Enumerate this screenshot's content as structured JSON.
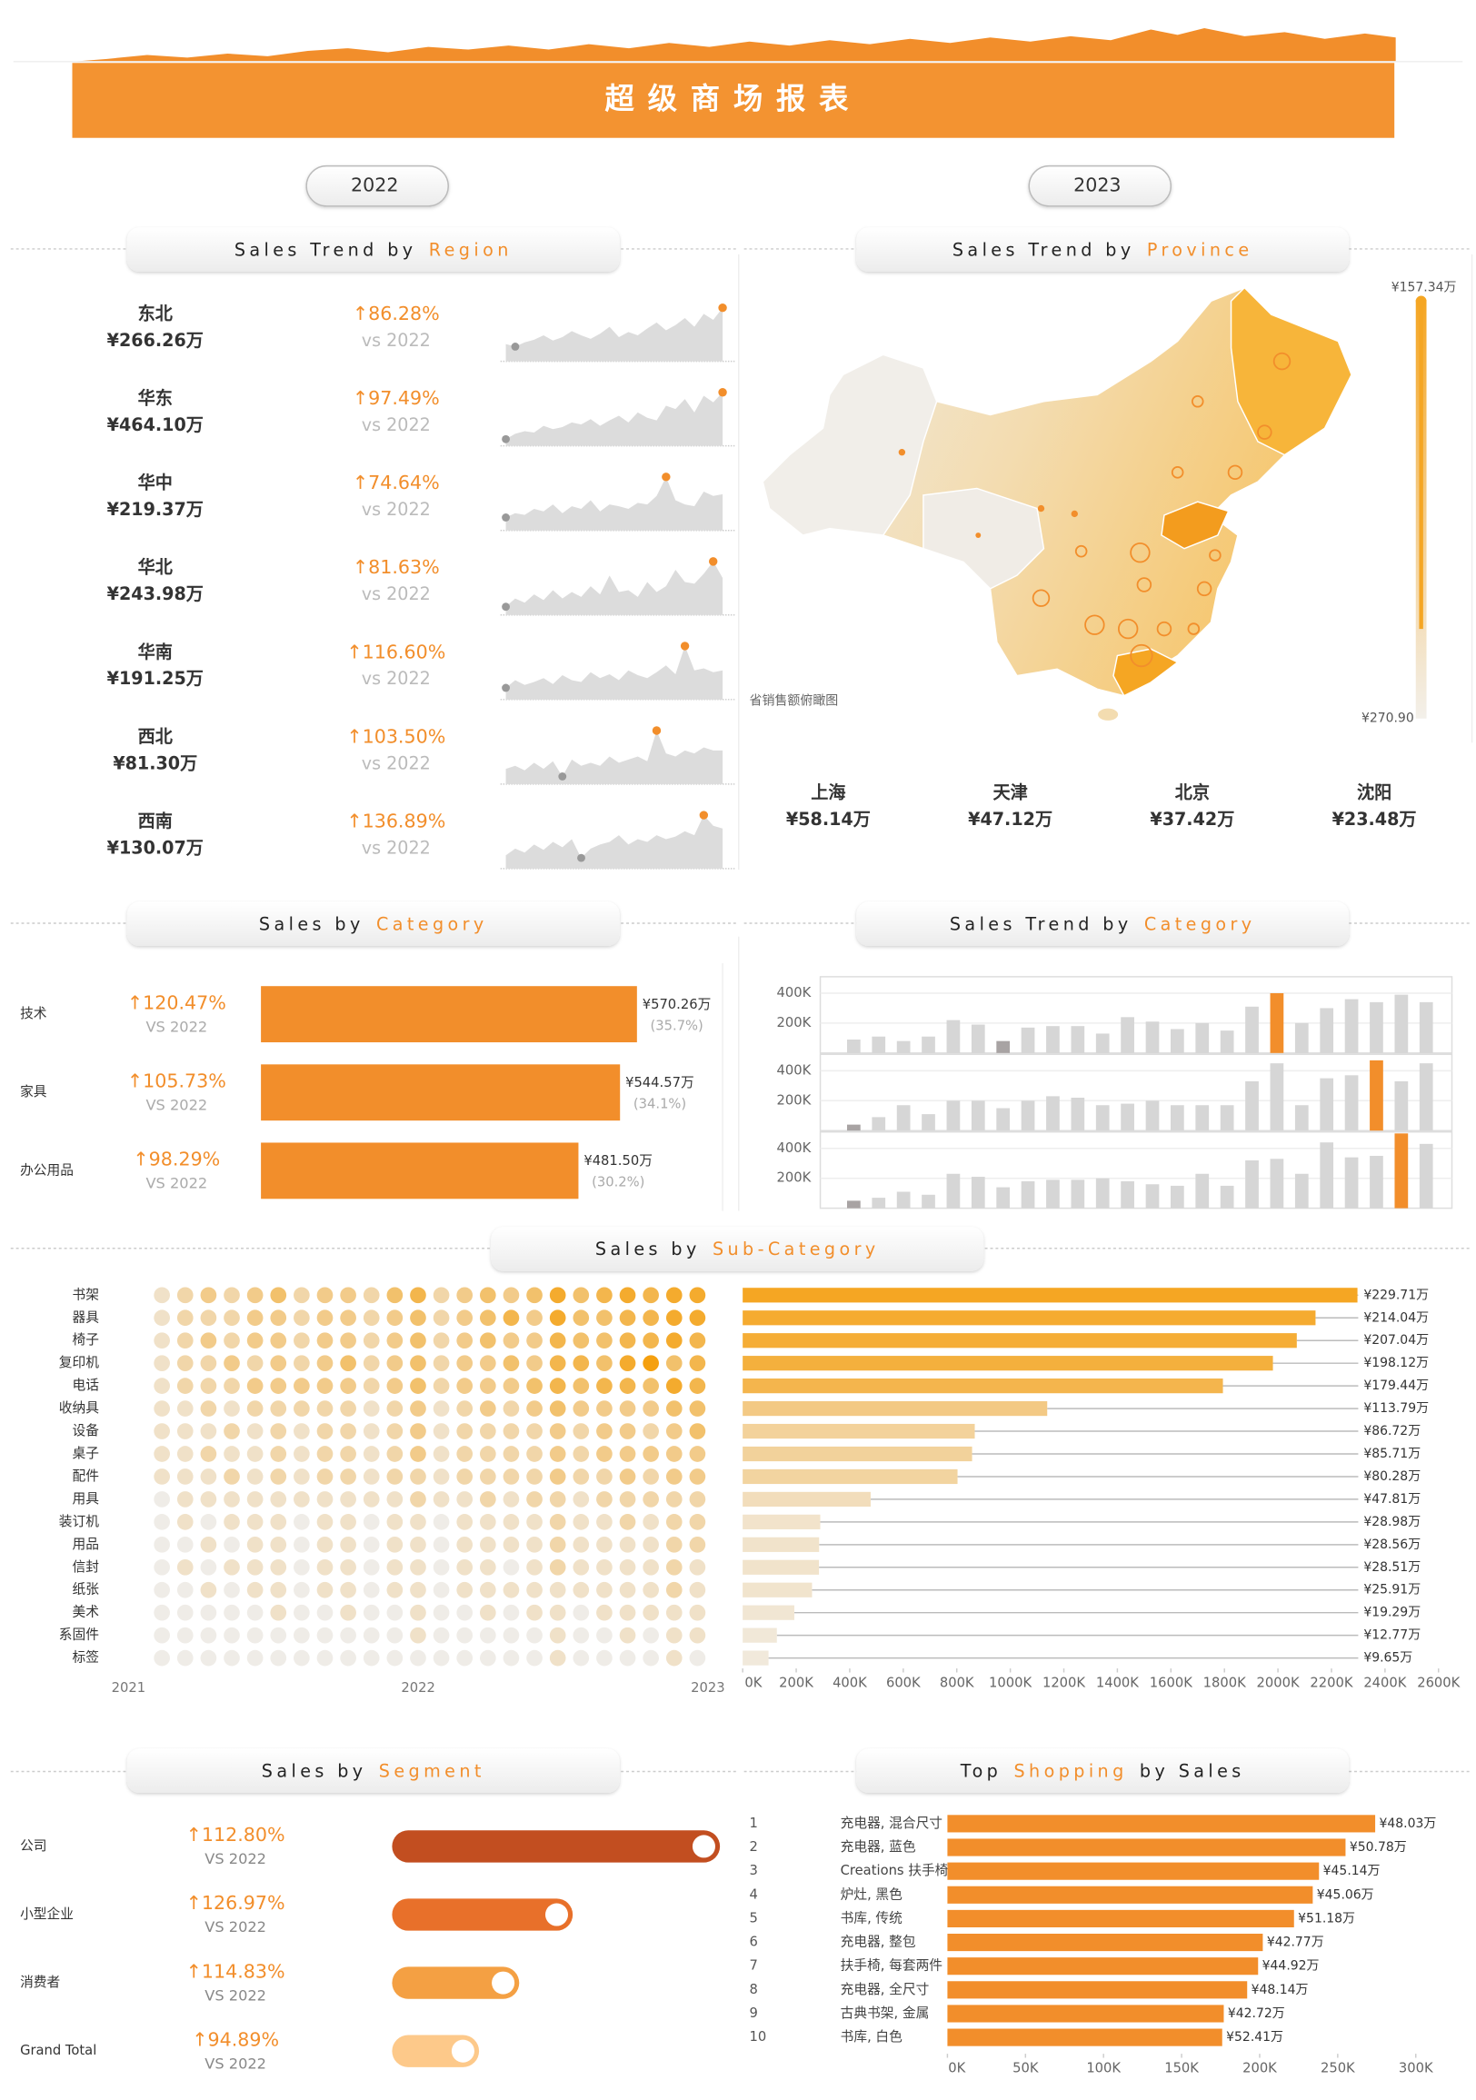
{
  "header": {
    "title": "超级商场报表"
  },
  "years": [
    "2022",
    "2023"
  ],
  "theme": {
    "accent": "#f28e2b",
    "muted": "#bbbbbb"
  },
  "region": {
    "title": [
      "Sales Trend by",
      "Region"
    ],
    "highlight": 1,
    "compare_label": "vs 2022",
    "rows": [
      {
        "name": "东北",
        "sales": "¥266.26万",
        "growth": "↑86.28%",
        "trend": [
          20,
          17,
          22,
          25,
          30,
          24,
          28,
          35,
          30,
          26,
          32,
          40,
          28,
          34,
          30,
          38,
          45,
          36,
          42,
          50,
          40,
          55,
          48,
          62
        ]
      },
      {
        "name": "华东",
        "sales": "¥464.10万",
        "growth": "↑97.49%",
        "trend": [
          10,
          18,
          22,
          20,
          30,
          25,
          28,
          35,
          32,
          40,
          30,
          38,
          45,
          35,
          50,
          42,
          38,
          60,
          55,
          70,
          50,
          75,
          65,
          80
        ]
      },
      {
        "name": "华中",
        "sales": "¥219.37万",
        "growth": "↑74.64%",
        "trend": [
          15,
          20,
          18,
          25,
          22,
          30,
          20,
          28,
          25,
          35,
          22,
          30,
          28,
          25,
          32,
          30,
          40,
          62,
          35,
          30,
          28,
          45,
          40,
          42
        ]
      },
      {
        "name": "华北",
        "sales": "¥243.98万",
        "growth": "↑81.63%",
        "trend": [
          10,
          20,
          15,
          25,
          18,
          30,
          20,
          28,
          22,
          35,
          25,
          48,
          28,
          30,
          22,
          40,
          28,
          35,
          55,
          40,
          38,
          50,
          65,
          45
        ]
      },
      {
        "name": "华南",
        "sales": "¥191.25万",
        "growth": "↑116.60%",
        "trend": [
          12,
          20,
          15,
          18,
          22,
          16,
          25,
          20,
          18,
          28,
          22,
          26,
          20,
          30,
          25,
          22,
          28,
          35,
          26,
          55,
          30,
          32,
          28,
          30
        ]
      },
      {
        "name": "西北",
        "sales": "¥81.30万",
        "growth": "↑103.50%",
        "trend": [
          10,
          12,
          9,
          14,
          10,
          15,
          5,
          16,
          12,
          14,
          12,
          18,
          14,
          16,
          18,
          15,
          35,
          20,
          18,
          22,
          20,
          24,
          22,
          22
        ]
      },
      {
        "name": "西南",
        "sales": "¥130.07万",
        "growth": "↑136.89%",
        "trend": [
          10,
          15,
          12,
          18,
          14,
          20,
          16,
          22,
          8,
          15,
          18,
          20,
          25,
          18,
          22,
          20,
          25,
          22,
          24,
          28,
          25,
          40,
          32,
          30
        ]
      }
    ]
  },
  "province": {
    "title": [
      "Sales Trend by",
      "Province"
    ],
    "highlight": 1,
    "map_caption": "省销售额俯瞰图",
    "legend": {
      "top_label": "¥157.34万",
      "bottom_label": "¥270.90"
    },
    "cities": [
      {
        "name": "上海",
        "sales": "¥58.14万"
      },
      {
        "name": "天津",
        "sales": "¥47.12万"
      },
      {
        "name": "北京",
        "sales": "¥37.42万"
      },
      {
        "name": "沈阳",
        "sales": "¥23.48万"
      }
    ]
  },
  "category": {
    "title": [
      "Sales by",
      "Category"
    ],
    "highlight": 1,
    "compare_label": "VS 2022",
    "color": "#f28e2b",
    "rows": [
      {
        "name": "技术",
        "growth": "↑120.47%",
        "value": 570.26,
        "value_label": "¥570.26万",
        "share": "(35.7%)"
      },
      {
        "name": "家具",
        "growth": "↑105.73%",
        "value": 544.57,
        "value_label": "¥544.57万",
        "share": "(34.1%)"
      },
      {
        "name": "办公用品",
        "growth": "↑98.29%",
        "value": 481.5,
        "value_label": "¥481.50万",
        "share": "(30.2%)"
      }
    ]
  },
  "category_trend": {
    "title": [
      "Sales Trend by",
      "Category"
    ],
    "highlight": 1,
    "ylim": [
      0,
      510000
    ],
    "yticks": [
      {
        "value": 200000,
        "label": "200K"
      },
      {
        "value": 400000,
        "label": "400K"
      }
    ],
    "base_color": "#d6d6d6",
    "highlight_color": "#f28e2b",
    "muted_color": "#a8a3a3",
    "panels": [
      {
        "values": [
          90000,
          110000,
          80000,
          110000,
          220000,
          190000,
          80000,
          170000,
          180000,
          180000,
          130000,
          240000,
          210000,
          160000,
          200000,
          150000,
          310000,
          400000,
          200000,
          300000,
          360000,
          340000,
          390000,
          340000
        ],
        "highlight_index": 17,
        "muted_index": 6
      },
      {
        "values": [
          40000,
          90000,
          170000,
          110000,
          200000,
          200000,
          150000,
          200000,
          230000,
          220000,
          170000,
          180000,
          200000,
          170000,
          170000,
          170000,
          330000,
          450000,
          170000,
          350000,
          370000,
          470000,
          330000,
          450000
        ],
        "highlight_index": 21,
        "muted_index": 0
      },
      {
        "values": [
          50000,
          70000,
          110000,
          90000,
          230000,
          210000,
          140000,
          180000,
          190000,
          190000,
          200000,
          180000,
          160000,
          150000,
          230000,
          150000,
          320000,
          330000,
          230000,
          440000,
          340000,
          350000,
          500000,
          430000
        ],
        "highlight_index": 22,
        "muted_index": 0
      }
    ]
  },
  "sub_category": {
    "title": [
      "Sales by",
      "Sub-Category"
    ],
    "highlight": 1,
    "period_labels": [
      "2021",
      "2022",
      "2023"
    ],
    "xlim": [
      0,
      2600000
    ],
    "xticks": [
      {
        "value": 0,
        "label": "0K"
      },
      {
        "value": 200000,
        "label": "200K"
      },
      {
        "value": 400000,
        "label": "400K"
      },
      {
        "value": 600000,
        "label": "600K"
      },
      {
        "value": 800000,
        "label": "800K"
      },
      {
        "value": 1000000,
        "label": "1000K"
      },
      {
        "value": 1200000,
        "label": "1200K"
      },
      {
        "value": 1400000,
        "label": "1400K"
      },
      {
        "value": 1600000,
        "label": "1600K"
      },
      {
        "value": 1800000,
        "label": "1800K"
      },
      {
        "value": 2000000,
        "label": "2000K"
      },
      {
        "value": 2200000,
        "label": "2200K"
      },
      {
        "value": 2400000,
        "label": "2400K"
      },
      {
        "value": 2600000,
        "label": "2600K"
      }
    ],
    "rows": [
      {
        "name": "书架",
        "value": 2297100,
        "value_label": "¥229.71万",
        "dots": [
          1,
          2,
          3,
          2,
          3,
          4,
          2,
          3,
          3,
          2,
          4,
          5,
          2,
          3,
          4,
          3,
          4,
          6,
          4,
          5,
          6,
          5,
          6,
          6
        ]
      },
      {
        "name": "器具",
        "value": 2140400,
        "value_label": "¥214.04万",
        "dots": [
          1,
          2,
          2,
          2,
          3,
          3,
          2,
          3,
          3,
          2,
          3,
          4,
          2,
          3,
          4,
          5,
          3,
          6,
          4,
          4,
          5,
          5,
          6,
          6
        ]
      },
      {
        "name": "椅子",
        "value": 2070400,
        "value_label": "¥207.04万",
        "dots": [
          1,
          2,
          3,
          2,
          3,
          3,
          2,
          3,
          3,
          2,
          3,
          4,
          2,
          3,
          4,
          3,
          3,
          5,
          4,
          4,
          5,
          5,
          6,
          5
        ]
      },
      {
        "name": "复印机",
        "value": 1981200,
        "value_label": "¥198.12万",
        "dots": [
          1,
          2,
          2,
          3,
          2,
          3,
          2,
          3,
          4,
          2,
          3,
          4,
          2,
          3,
          3,
          4,
          3,
          5,
          5,
          4,
          6,
          7,
          4,
          5
        ]
      },
      {
        "name": "电话",
        "value": 1794400,
        "value_label": "¥179.44万",
        "dots": [
          1,
          2,
          2,
          2,
          3,
          3,
          3,
          3,
          3,
          2,
          3,
          4,
          2,
          3,
          3,
          3,
          4,
          5,
          4,
          5,
          5,
          4,
          6,
          5
        ]
      },
      {
        "name": "收纳具",
        "value": 1137900,
        "value_label": "¥113.79万",
        "dots": [
          1,
          1,
          2,
          1,
          2,
          2,
          2,
          2,
          2,
          1,
          2,
          3,
          1,
          2,
          3,
          2,
          3,
          4,
          3,
          3,
          3,
          3,
          4,
          4
        ]
      },
      {
        "name": "设备",
        "value": 867200,
        "value_label": "¥86.72万",
        "dots": [
          1,
          1,
          1,
          2,
          1,
          2,
          1,
          2,
          2,
          1,
          2,
          3,
          1,
          2,
          2,
          2,
          2,
          3,
          2,
          3,
          3,
          2,
          3,
          4
        ]
      },
      {
        "name": "桌子",
        "value": 857100,
        "value_label": "¥85.71万",
        "dots": [
          1,
          1,
          2,
          1,
          1,
          2,
          1,
          2,
          2,
          1,
          2,
          3,
          1,
          2,
          2,
          2,
          2,
          3,
          2,
          3,
          3,
          3,
          3,
          3
        ]
      },
      {
        "name": "配件",
        "value": 802800,
        "value_label": "¥80.28万",
        "dots": [
          1,
          1,
          1,
          2,
          1,
          2,
          1,
          2,
          2,
          1,
          2,
          2,
          1,
          2,
          2,
          2,
          2,
          3,
          2,
          2,
          3,
          2,
          3,
          3
        ]
      },
      {
        "name": "用具",
        "value": 478100,
        "value_label": "¥47.81万",
        "dots": [
          0,
          1,
          1,
          1,
          1,
          1,
          1,
          1,
          1,
          1,
          1,
          2,
          1,
          1,
          2,
          1,
          2,
          2,
          1,
          2,
          2,
          2,
          2,
          2
        ]
      },
      {
        "name": "装订机",
        "value": 289800,
        "value_label": "¥28.98万",
        "dots": [
          0,
          1,
          0,
          1,
          1,
          1,
          0,
          1,
          1,
          0,
          1,
          1,
          0,
          1,
          1,
          1,
          1,
          2,
          1,
          1,
          2,
          1,
          2,
          2
        ]
      },
      {
        "name": "用品",
        "value": 285600,
        "value_label": "¥28.56万",
        "dots": [
          0,
          0,
          1,
          0,
          1,
          1,
          0,
          1,
          1,
          0,
          1,
          1,
          0,
          1,
          1,
          1,
          1,
          2,
          1,
          1,
          1,
          1,
          2,
          2
        ]
      },
      {
        "name": "信封",
        "value": 285100,
        "value_label": "¥28.51万",
        "dots": [
          0,
          1,
          0,
          1,
          1,
          1,
          0,
          1,
          1,
          0,
          1,
          1,
          0,
          1,
          1,
          0,
          1,
          2,
          1,
          1,
          1,
          1,
          2,
          1
        ]
      },
      {
        "name": "纸张",
        "value": 259100,
        "value_label": "¥25.91万",
        "dots": [
          0,
          0,
          1,
          0,
          1,
          1,
          0,
          1,
          1,
          0,
          1,
          1,
          0,
          1,
          1,
          1,
          1,
          1,
          1,
          1,
          1,
          1,
          2,
          1
        ]
      },
      {
        "name": "美术",
        "value": 192900,
        "value_label": "¥19.29万",
        "dots": [
          0,
          0,
          0,
          0,
          0,
          1,
          0,
          0,
          1,
          0,
          0,
          1,
          0,
          0,
          1,
          0,
          1,
          1,
          0,
          1,
          1,
          1,
          1,
          1
        ]
      },
      {
        "name": "系固件",
        "value": 127700,
        "value_label": "¥12.77万",
        "dots": [
          0,
          0,
          0,
          0,
          0,
          0,
          0,
          0,
          0,
          0,
          0,
          1,
          0,
          0,
          0,
          0,
          0,
          1,
          0,
          0,
          1,
          0,
          1,
          1
        ]
      },
      {
        "name": "标签",
        "value": 96500,
        "value_label": "¥9.65万",
        "dots": [
          0,
          0,
          0,
          0,
          0,
          0,
          0,
          0,
          0,
          0,
          0,
          0,
          0,
          0,
          0,
          0,
          0,
          1,
          0,
          0,
          0,
          0,
          1,
          0
        ]
      }
    ]
  },
  "segment": {
    "title": [
      "Sales by",
      "Segment"
    ],
    "highlight": 1,
    "compare_label": "VS 2022",
    "rows": [
      {
        "name": "公司",
        "growth": "↑112.80%",
        "value": 245,
        "color": "#c24e20"
      },
      {
        "name": "小型企业",
        "growth": "↑126.97%",
        "value": 135,
        "color": "#e8702a"
      },
      {
        "name": "消费者",
        "growth": "↑114.83%",
        "value": 95,
        "color": "#f4a043"
      },
      {
        "name": "Grand Total",
        "growth": "↑94.89%",
        "value": 65,
        "color": "#fdc98a"
      }
    ]
  },
  "top_shopping": {
    "title": [
      "Top",
      "Shopping",
      "by Sales"
    ],
    "highlight": 1,
    "color": "#f28e2b",
    "xlim": [
      0,
      300000
    ],
    "xticks": [
      {
        "value": 0,
        "label": "0K"
      },
      {
        "value": 50000,
        "label": "50K"
      },
      {
        "value": 100000,
        "label": "100K"
      },
      {
        "value": 150000,
        "label": "150K"
      },
      {
        "value": 200000,
        "label": "200K"
      },
      {
        "value": 250000,
        "label": "250K"
      },
      {
        "value": 300000,
        "label": "300K"
      }
    ],
    "rows": [
      {
        "rank": 1,
        "name": "充电器, 混合尺寸",
        "value": 274000,
        "amount_label": "¥48.03万"
      },
      {
        "rank": 2,
        "name": "充电器, 蓝色",
        "value": 255000,
        "amount_label": "¥50.78万"
      },
      {
        "rank": 3,
        "name": "Creations 扶手椅",
        "value": 238000,
        "amount_label": "¥45.14万"
      },
      {
        "rank": 4,
        "name": "炉灶, 黑色",
        "value": 234000,
        "amount_label": "¥45.06万"
      },
      {
        "rank": 5,
        "name": "书库, 传统",
        "value": 222000,
        "amount_label": "¥51.18万"
      },
      {
        "rank": 6,
        "name": "充电器, 整包",
        "value": 202000,
        "amount_label": "¥42.77万"
      },
      {
        "rank": 7,
        "name": "扶手椅, 每套两件",
        "value": 199000,
        "amount_label": "¥44.92万"
      },
      {
        "rank": 8,
        "name": "充电器, 全尺寸",
        "value": 192000,
        "amount_label": "¥48.14万"
      },
      {
        "rank": 9,
        "name": "古典书架, 金属",
        "value": 177000,
        "amount_label": "¥42.72万"
      },
      {
        "rank": 10,
        "name": "书库, 白色",
        "value": 176000,
        "amount_label": "¥52.41万"
      }
    ]
  }
}
